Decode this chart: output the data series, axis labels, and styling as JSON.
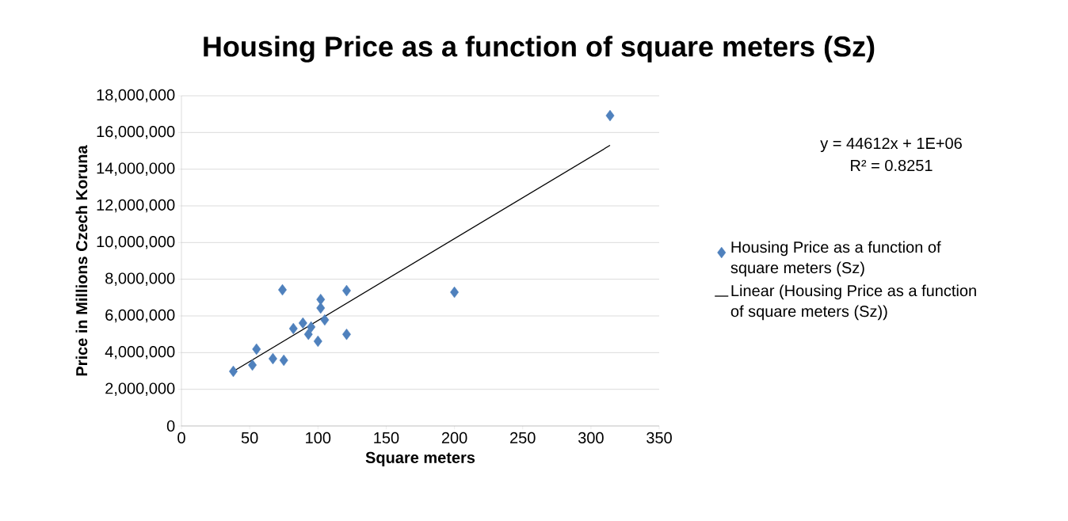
{
  "chart_data": {
    "type": "scatter",
    "title": "Housing Price as a function of square meters (Sz)",
    "xlabel": "Square meters",
    "ylabel": "Price in Millions Czech Koruna",
    "annotations": [
      "y = 44612x + 1E+06",
      "R² = 0.8251"
    ],
    "series": [
      {
        "name": "Housing Price as a function of square meters (Sz)",
        "type": "scatter",
        "color": "#4f81bd",
        "marker": "diamond",
        "x": [
          38,
          52,
          55,
          67,
          75,
          74,
          82,
          89,
          95,
          93,
          100,
          102,
          102,
          105,
          121,
          121,
          200,
          314
        ],
        "values": [
          2980000,
          3320000,
          4190000,
          3670000,
          3580000,
          7420000,
          5310000,
          5610000,
          5400000,
          5000000,
          4620000,
          6900000,
          6430000,
          5780000,
          7380000,
          5000000,
          7290000,
          16920000
        ]
      },
      {
        "name": "Linear (Housing Price as a function of square meters (Sz))",
        "type": "line",
        "color": "#000000",
        "marker": "none",
        "line_style": "solid",
        "x": [
          38,
          314
        ],
        "values": [
          2980000,
          15300000
        ]
      }
    ],
    "xlim": [
      0,
      350
    ],
    "xticks": [
      0,
      50,
      100,
      150,
      200,
      250,
      300,
      350
    ],
    "ylim": [
      0,
      18000000
    ],
    "yticks": [
      0,
      {
        "value": 2000000,
        "label": "2,000,000"
      },
      {
        "value": 4000000,
        "label": "4,000,000"
      },
      {
        "value": 6000000,
        "label": "6,000,000"
      },
      {
        "value": 8000000,
        "label": "8,000,000"
      },
      {
        "value": 10000000,
        "label": "10,000,000"
      },
      {
        "value": 12000000,
        "label": "12,000,000"
      },
      {
        "value": 14000000,
        "label": "14,000,000"
      },
      {
        "value": 16000000,
        "label": "16,000,000"
      },
      {
        "value": 18000000,
        "label": "18,000,000"
      }
    ],
    "grid": "y",
    "legend": "right"
  }
}
